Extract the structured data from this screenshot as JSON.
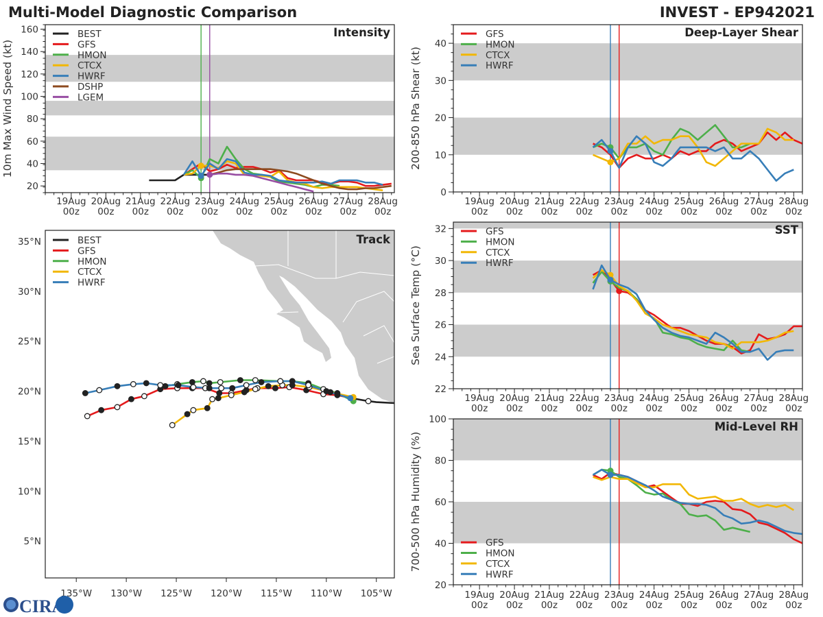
{
  "header": {
    "title": "Multi-Model Diagnostic Comparison",
    "storm": "INVEST - EP942021"
  },
  "logo_text": "CIRA",
  "colors": {
    "BEST": "#222222",
    "GFS": "#e41a1c",
    "HMON": "#4daf4a",
    "CTCX": "#f2b705",
    "HWRF": "#377eb8",
    "DSHP": "#8c4a1e",
    "LGEM": "#984ea3",
    "band": "#cccccc",
    "land": "#cccccc"
  },
  "time_ticks": [
    "19Aug 00z",
    "20Aug 00z",
    "21Aug 00z",
    "22Aug 00z",
    "23Aug 00z",
    "24Aug 00z",
    "25Aug 00z",
    "26Aug 00z",
    "27Aug 00z",
    "28Aug 00z"
  ],
  "chart_data": [
    {
      "type": "line",
      "title": "Intensity",
      "ylabel": "10m Max Wind Speed (kt)",
      "xlim": [
        "18Aug06z",
        "28Aug08z"
      ],
      "ylim": [
        14,
        164
      ],
      "yticks": [
        20,
        40,
        60,
        80,
        100,
        120,
        140,
        160
      ],
      "bands": [
        [
          34,
          64
        ],
        [
          83,
          96
        ],
        [
          113,
          137
        ]
      ],
      "legend": "top-left",
      "vlines": [
        {
          "time": "22Aug18z",
          "color": "#4daf4a"
        },
        {
          "time": "23Aug00z",
          "color": "#984ea3"
        }
      ],
      "series": [
        {
          "name": "BEST",
          "start": "21Aug06z",
          "step_h": 6,
          "values": [
            25,
            25,
            25,
            25,
            30,
            30,
            30,
            30
          ]
        },
        {
          "name": "GFS",
          "start": "22Aug06z",
          "step_h": 6,
          "values": [
            30,
            35,
            40,
            33,
            35,
            39,
            36,
            37,
            37,
            35,
            32,
            34,
            27,
            25,
            25,
            25,
            23,
            22,
            24,
            24,
            23,
            20,
            20,
            21,
            22
          ]
        },
        {
          "name": "HMON",
          "start": "22Aug06z",
          "step_h": 6,
          "marker": "22Aug18z",
          "values": [
            30,
            34,
            27,
            44,
            40,
            55,
            44,
            35,
            31,
            30,
            28,
            24,
            23,
            22,
            21,
            19,
            21,
            21,
            20
          ]
        },
        {
          "name": "CTCX",
          "start": "22Aug06z",
          "step_h": 6,
          "marker": "22Aug18z",
          "values": [
            30,
            31,
            38,
            38,
            36,
            42,
            40,
            30,
            30,
            29,
            28,
            33,
            25,
            23,
            22,
            19,
            18,
            19,
            19,
            19,
            19,
            18,
            17,
            16
          ]
        },
        {
          "name": "HWRF",
          "start": "22Aug06z",
          "step_h": 6,
          "marker": "22Aug18z",
          "values": [
            30,
            42,
            29,
            40,
            35,
            44,
            42,
            32,
            30,
            30,
            29,
            25,
            24,
            23,
            23,
            23,
            24,
            22,
            25,
            25,
            25,
            23,
            23,
            21
          ]
        },
        {
          "name": "DSHP",
          "start": "23Aug00z",
          "step_h": 6,
          "values": [
            30,
            32,
            34,
            35,
            35,
            35,
            35,
            35,
            34,
            33,
            31,
            28,
            25,
            22,
            20,
            18,
            17,
            17,
            18,
            18,
            19,
            20
          ]
        },
        {
          "name": "LGEM",
          "start": "23Aug00z",
          "step_h": 6,
          "marker": "23Aug00z",
          "values": [
            30,
            31,
            31,
            30,
            30,
            29,
            27,
            25,
            23,
            21,
            19,
            17,
            15
          ]
        }
      ]
    },
    {
      "type": "line",
      "title": "Deep-Layer Shear",
      "ylabel": "200-850 hPa Shear (kt)",
      "xlim": [
        "18Aug06z",
        "28Aug06z"
      ],
      "ylim": [
        0,
        45
      ],
      "yticks": [
        0,
        10,
        20,
        30,
        40
      ],
      "bands": [
        [
          10,
          20
        ],
        [
          30,
          40
        ]
      ],
      "legend": "top-left",
      "vlines": [
        {
          "time": "22Aug18z",
          "color": "#377eb8"
        },
        {
          "time": "23Aug00z",
          "color": "#e41a1c"
        }
      ],
      "series": [
        {
          "name": "GFS",
          "start": "22Aug06z",
          "step_h": 6,
          "values": [
            13,
            12,
            10,
            6.5,
            9,
            10,
            9,
            9,
            10,
            9,
            11,
            10,
            11,
            11,
            13,
            14,
            13,
            11,
            12,
            13,
            16,
            14,
            16,
            14,
            13
          ]
        },
        {
          "name": "HMON",
          "start": "22Aug06z",
          "step_h": 6,
          "marker": "22Aug18z",
          "values": [
            12,
            13,
            12,
            9,
            12,
            12,
            13,
            11,
            10,
            14,
            17,
            16,
            14,
            16,
            18,
            15,
            12,
            12,
            13
          ]
        },
        {
          "name": "CTCX",
          "start": "22Aug06z",
          "step_h": 6,
          "marker": "22Aug18z",
          "values": [
            10,
            9,
            8,
            9,
            13,
            13,
            15,
            13,
            14,
            14,
            15,
            15,
            12,
            8,
            7,
            9,
            11,
            13,
            13,
            13,
            17,
            16,
            14,
            14
          ]
        },
        {
          "name": "HWRF",
          "start": "22Aug06z",
          "step_h": 6,
          "marker": "22Aug18z",
          "values": [
            12,
            14,
            11,
            6.5,
            12,
            15,
            13,
            8,
            7,
            9,
            12,
            12,
            12,
            12,
            11,
            12,
            9,
            9,
            11,
            9,
            6,
            3,
            5,
            6
          ]
        }
      ]
    },
    {
      "type": "line",
      "title": "SST",
      "ylabel": "Sea Surface Temp (°C)",
      "xlim": [
        "18Aug06z",
        "28Aug06z"
      ],
      "ylim": [
        22,
        32.4
      ],
      "yticks": [
        22,
        24,
        26,
        28,
        30,
        32
      ],
      "bands": [
        [
          24,
          26
        ],
        [
          28,
          30
        ],
        [
          32,
          34
        ]
      ],
      "legend": "top-left",
      "vlines": [
        {
          "time": "22Aug18z",
          "color": "#377eb8"
        },
        {
          "time": "23Aug00z",
          "color": "#e41a1c"
        }
      ],
      "series": [
        {
          "name": "GFS",
          "start": "22Aug06z",
          "step_h": 6,
          "marker": "23Aug00z",
          "values": [
            29.1,
            29.4,
            28.8,
            28.1,
            28.0,
            27.6,
            26.9,
            26.6,
            26.2,
            25.8,
            25.8,
            25.6,
            25.3,
            25.0,
            24.8,
            24.8,
            24.6,
            24.2,
            24.4,
            25.4,
            25.1,
            25.2,
            25.4,
            25.9,
            25.9
          ]
        },
        {
          "name": "HMON",
          "start": "22Aug06z",
          "step_h": 6,
          "marker": "22Aug18z",
          "values": [
            28.6,
            29.3,
            28.7,
            28.3,
            28.1,
            27.6,
            26.7,
            26.4,
            25.5,
            25.4,
            25.2,
            25.1,
            24.8,
            24.6,
            24.5,
            24.4,
            25.0,
            24.4,
            24.3
          ]
        },
        {
          "name": "CTCX",
          "start": "22Aug06z",
          "step_h": 6,
          "marker": "22Aug18z",
          "values": [
            28.9,
            29.4,
            29.1,
            28.4,
            28.1,
            27.5,
            26.7,
            26.4,
            26.0,
            25.8,
            25.6,
            25.4,
            25.3,
            25.2,
            24.9,
            24.8,
            24.5,
            24.9,
            24.9,
            24.9,
            25.0,
            25.2,
            25.5,
            25.6
          ]
        },
        {
          "name": "HWRF",
          "start": "22Aug06z",
          "step_h": 6,
          "marker": "22Aug18z",
          "values": [
            28.2,
            29.7,
            28.8,
            28.5,
            28.3,
            27.9,
            26.9,
            26.3,
            25.8,
            25.5,
            25.3,
            25.2,
            25.0,
            24.8,
            25.5,
            25.2,
            24.8,
            24.3,
            24.3,
            24.5,
            23.8,
            24.3,
            24.4,
            24.4
          ]
        }
      ]
    },
    {
      "type": "line",
      "title": "Mid-Level RH",
      "ylabel": "700-500 hPa Humidity (%)",
      "xlim": [
        "18Aug06z",
        "28Aug06z"
      ],
      "ylim": [
        20,
        100
      ],
      "yticks": [
        20,
        40,
        60,
        80,
        100
      ],
      "bands": [
        [
          40,
          60
        ],
        [
          80,
          100
        ]
      ],
      "legend": "bottom-left",
      "vlines": [
        {
          "time": "22Aug18z",
          "color": "#377eb8"
        },
        {
          "time": "23Aug00z",
          "color": "#e41a1c"
        }
      ],
      "series": [
        {
          "name": "GFS",
          "start": "22Aug06z",
          "step_h": 6,
          "values": [
            73,
            71,
            74,
            73,
            72,
            70,
            67,
            68,
            65,
            62,
            59,
            59,
            58,
            60,
            60.5,
            60,
            56.5,
            56,
            54,
            50,
            49,
            47,
            45,
            42,
            40
          ]
        },
        {
          "name": "HMON",
          "start": "22Aug06z",
          "step_h": 6,
          "marker": "22Aug18z",
          "values": [
            73,
            75.5,
            75,
            72,
            71,
            68,
            64.5,
            63.5,
            64,
            61,
            59,
            54,
            53,
            53.5,
            51,
            46.5,
            47.5,
            46.5,
            45.5
          ]
        },
        {
          "name": "CTCX",
          "start": "22Aug06z",
          "step_h": 6,
          "values": [
            72,
            70.5,
            72,
            71,
            71,
            69,
            67,
            67,
            68.5,
            68.5,
            68.5,
            63.5,
            61.5,
            62,
            62.5,
            60.5,
            60.5,
            61.5,
            59,
            57.5,
            58.5,
            57.5,
            58.5,
            56
          ]
        },
        {
          "name": "HWRF",
          "start": "22Aug06z",
          "step_h": 6,
          "marker": "22Aug18z",
          "values": [
            73,
            75.5,
            73,
            73,
            72,
            70,
            68,
            65.5,
            62.5,
            61,
            59.5,
            59,
            59,
            58.5,
            57,
            53.5,
            52,
            49.5,
            50,
            51,
            50,
            48,
            46,
            45,
            44.5
          ]
        }
      ]
    },
    {
      "type": "map",
      "title": "Track",
      "legend": "top-left",
      "xlim": [
        -138.1,
        -103.2
      ],
      "ylim": [
        1.3,
        36.1
      ],
      "xticks": [
        {
          "v": -135,
          "label": "135°W"
        },
        {
          "v": -130,
          "label": "130°W"
        },
        {
          "v": -125,
          "label": "125°W"
        },
        {
          "v": -120,
          "label": "120°W"
        },
        {
          "v": -115,
          "label": "115°W"
        },
        {
          "v": -110,
          "label": "110°W"
        },
        {
          "v": -105,
          "label": "105°W"
        }
      ],
      "yticks": [
        {
          "v": 5,
          "label": "5°N"
        },
        {
          "v": 10,
          "label": "10°N"
        },
        {
          "v": 15,
          "label": "15°N"
        },
        {
          "v": 20,
          "label": "20°N"
        },
        {
          "v": 25,
          "label": "25°N"
        },
        {
          "v": 30,
          "label": "30°N"
        },
        {
          "v": 35,
          "label": "35°N"
        }
      ],
      "tracks": [
        {
          "name": "BEST",
          "lon": [
            -103.2,
            -105.0,
            -105.8,
            -107.5
          ],
          "lat": [
            18.8,
            18.9,
            19.0,
            19.3
          ],
          "markers": [
            2
          ]
        },
        {
          "name": "GFS",
          "lon": [
            -133.9,
            -132.5,
            -130.9,
            -129.5,
            -128.2,
            -126.6,
            -124.9,
            -123.4,
            -122.1,
            -120.7,
            -119.5,
            -118.0,
            -116.9,
            -115.1,
            -113.7,
            -112.0,
            -110.3,
            -108.9,
            -107.5
          ],
          "lat": [
            17.5,
            18.1,
            18.4,
            19.2,
            19.5,
            20.2,
            20.3,
            20.3,
            20.3,
            19.8,
            19.8,
            20.1,
            20.3,
            20.3,
            20.4,
            20.1,
            19.7,
            19.6,
            19.3
          ]
        },
        {
          "name": "HMON",
          "lon": [
            -126.1,
            -124.9,
            -123.4,
            -122.3,
            -121.7,
            -120.6,
            -118.6,
            -117.1,
            -114.6,
            -113.4,
            -111.8,
            -110.3,
            -108.9,
            -107.3
          ],
          "lat": [
            20.5,
            20.7,
            20.9,
            21.0,
            20.8,
            20.9,
            21.1,
            21.1,
            21.0,
            21.0,
            20.8,
            20.2,
            19.8,
            19.0
          ]
        },
        {
          "name": "CTCX",
          "lon": [
            -125.4,
            -123.9,
            -123.3,
            -121.9,
            -121.4,
            -120.8,
            -119.5,
            -118.2,
            -117.1,
            -115.8,
            -114.4,
            -113.4,
            -111.7,
            -109.6,
            -107.3
          ],
          "lat": [
            16.6,
            17.7,
            18.1,
            18.3,
            19.2,
            19.3,
            19.6,
            19.9,
            20.2,
            20.5,
            20.6,
            20.6,
            20.4,
            19.9,
            19.4
          ]
        },
        {
          "name": "HWRF",
          "lon": [
            -134.1,
            -132.7,
            -130.9,
            -129.3,
            -128.0,
            -126.6,
            -124.8,
            -123.3,
            -121.7,
            -120.5,
            -119.4,
            -118.0,
            -116.5,
            -114.6,
            -113.4,
            -111.8,
            -110.0,
            -107.6
          ],
          "lat": [
            19.8,
            20.1,
            20.5,
            20.7,
            20.8,
            20.6,
            20.6,
            20.4,
            20.3,
            20.3,
            20.3,
            20.6,
            20.9,
            21.0,
            21.0,
            20.6,
            20.0,
            19.3
          ]
        }
      ]
    }
  ]
}
